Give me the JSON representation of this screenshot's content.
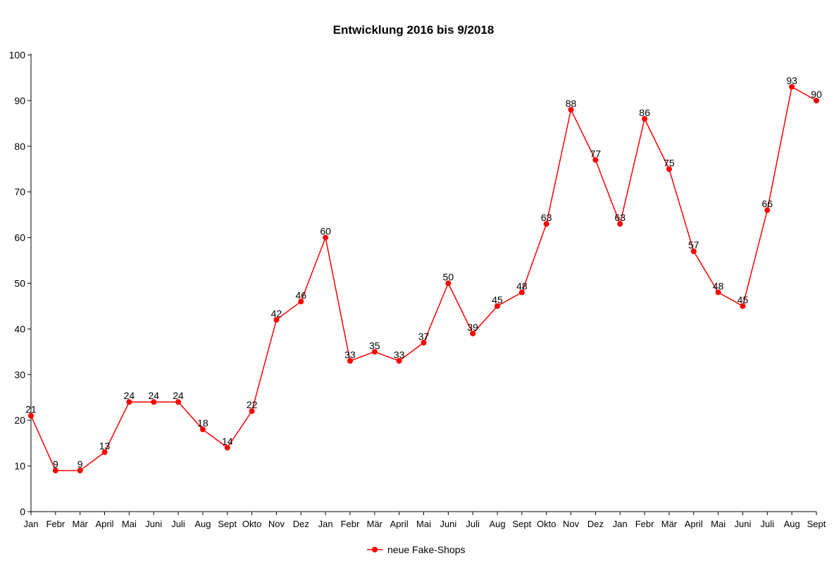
{
  "chart_data": {
    "type": "line",
    "title": "Entwicklung 2016 bis 9/2018",
    "xlabel": "",
    "ylabel": "",
    "ylim": [
      0,
      100
    ],
    "yticks": [
      0,
      10,
      20,
      30,
      40,
      50,
      60,
      70,
      80,
      90,
      100
    ],
    "grid": false,
    "legend_position": "bottom",
    "categories": [
      "Jan",
      "Febr",
      "Mär",
      "April",
      "Mai",
      "Juni",
      "Juli",
      "Aug",
      "Sept",
      "Okto",
      "Nov",
      "Dez",
      "Jan",
      "Febr",
      "Mär",
      "April",
      "Mai",
      "Juni",
      "Juli",
      "Aug",
      "Sept",
      "Okto",
      "Nov",
      "Dez",
      "Jan",
      "Febr",
      "Mär",
      "April",
      "Mai",
      "Juni",
      "Juli",
      "Aug",
      "Sept"
    ],
    "series": [
      {
        "name": "neue Fake-Shops",
        "color": "#ff0000",
        "values": [
          21,
          9,
          9,
          13,
          24,
          24,
          24,
          18,
          14,
          22,
          42,
          46,
          60,
          33,
          35,
          33,
          37,
          50,
          39,
          45,
          48,
          63,
          88,
          77,
          63,
          86,
          75,
          57,
          48,
          45,
          66,
          93,
          90
        ]
      }
    ]
  }
}
